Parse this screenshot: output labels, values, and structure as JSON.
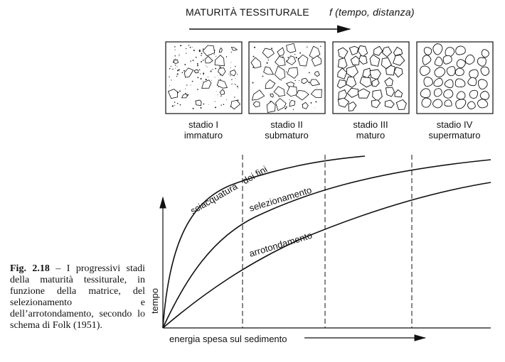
{
  "header": {
    "title": "MATURITÀ TESSITURALE",
    "function_label": "f (tempo, distanza)"
  },
  "stages": [
    {
      "line1": "stadio I",
      "line2": "immaturo"
    },
    {
      "line1": "stadio II",
      "line2": "submaturo"
    },
    {
      "line1": "stadio III",
      "line2": "maturo"
    },
    {
      "line1": "stadio IV",
      "line2": "supermaturo"
    }
  ],
  "curves": {
    "fines": "sciacquatura   dei fini",
    "sorting": "selezionamento",
    "rounding": "arrotondamento"
  },
  "axes": {
    "x_label": "energia spesa sul sedimento",
    "y_label": "tempo"
  },
  "caption": {
    "fig": "Fig. 2.18",
    "text": " – I progressivi stadi della maturità tessiturale, in funzione della matrice, del selezionamento e dell’arrotondamento, secondo lo schema di Folk (1951)."
  },
  "colors": {
    "ink": "#111111",
    "background": "#ffffff"
  }
}
